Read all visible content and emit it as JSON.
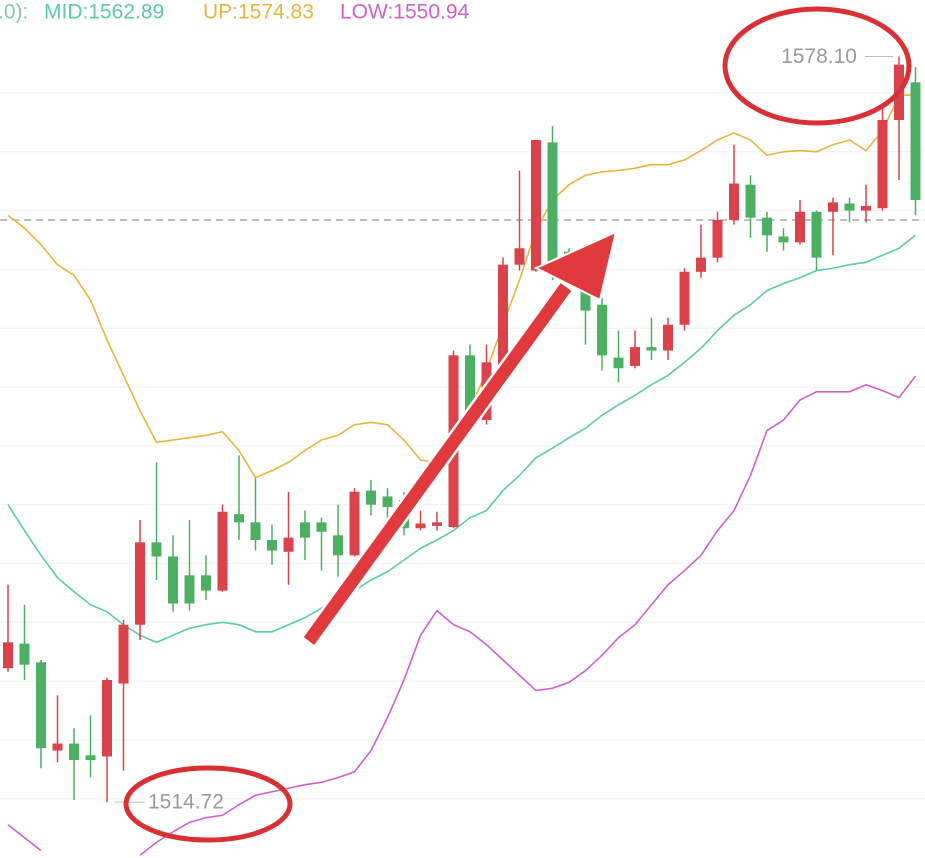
{
  "chart_data": {
    "type": "candlestick",
    "legend_prefix": ".0):",
    "high_label": "1578.10",
    "low_label": "1514.72",
    "up_color": "#d9434b",
    "down_color": "#4caf62",
    "ylim": [
      1509.97,
      1582.9
    ],
    "grid": true,
    "grid_values": [
      1515,
      1520,
      1525,
      1530,
      1535,
      1540,
      1545,
      1550,
      1555,
      1560,
      1565,
      1570,
      1575
    ],
    "price_line": 1564.2,
    "open": [
      1526.1,
      1528.2,
      1526.6,
      1519.1,
      1519.7,
      1518.7,
      1518.6,
      1524.8,
      1529.8,
      1536.8,
      1535.6,
      1534.0,
      1534.0,
      1532.7,
      1539.2,
      1538.5,
      1537.0,
      1536.0,
      1538.5,
      1538.5,
      1537.4,
      1535.7,
      1541.2,
      1540.7,
      1540.4,
      1538.0,
      1538.2,
      1538.1,
      1552.7,
      1547.2,
      1551.4,
      1560.4,
      1559.9,
      1570.8,
      1561.5,
      1558.2,
      1557.0,
      1552.5,
      1551.8,
      1553.4,
      1553.1,
      1555.3,
      1559.8,
      1561.0,
      1564.2,
      1567.2,
      1564.4,
      1562.8,
      1562.3,
      1564.9,
      1564.9,
      1565.6,
      1565.0,
      1565.2,
      1572.7,
      1575.9
    ],
    "close": [
      1528.3,
      1526.4,
      1519.3,
      1519.7,
      1518.3,
      1518.3,
      1525.1,
      1529.8,
      1536.8,
      1535.6,
      1531.6,
      1531.6,
      1532.7,
      1539.4,
      1538.5,
      1537.0,
      1536.1,
      1537.2,
      1537.2,
      1537.7,
      1535.7,
      1541.1,
      1540.0,
      1539.8,
      1538.0,
      1538.4,
      1538.5,
      1552.7,
      1548.0,
      1552.1,
      1560.4,
      1561.8,
      1571.0,
      1560.4,
      1560.1,
      1556.5,
      1552.7,
      1551.6,
      1553.4,
      1553.1,
      1555.3,
      1559.8,
      1561.0,
      1564.2,
      1567.3,
      1564.4,
      1562.9,
      1562.3,
      1564.9,
      1561.0,
      1565.7,
      1565.0,
      1565.4,
      1572.7,
      1577.4,
      1565.9
    ],
    "high": [
      1533.2,
      1531.5,
      1526.8,
      1523.8,
      1521.0,
      1522.1,
      1525.3,
      1530.2,
      1538.7,
      1543.6,
      1537.4,
      1538.7,
      1535.7,
      1540.0,
      1544.2,
      1542.3,
      1538.3,
      1541.1,
      1539.5,
      1538.9,
      1540.0,
      1541.4,
      1542.1,
      1541.4,
      1541.1,
      1539.5,
      1539.4,
      1553.1,
      1553.6,
      1553.6,
      1561.0,
      1568.4,
      1571.0,
      1572.2,
      1561.8,
      1558.7,
      1557.6,
      1554.8,
      1554.8,
      1555.9,
      1555.9,
      1560.1,
      1563.8,
      1564.9,
      1570.6,
      1568.0,
      1564.9,
      1563.5,
      1565.9,
      1565.0,
      1566.1,
      1566.1,
      1567.2,
      1574.0,
      1578.1,
      1577.2
    ],
    "low": [
      1525.8,
      1525.1,
      1517.6,
      1518.1,
      1514.9,
      1516.8,
      1514.72,
      1517.4,
      1528.5,
      1533.6,
      1530.9,
      1531.0,
      1531.9,
      1532.6,
      1537.0,
      1536.1,
      1534.9,
      1533.2,
      1535.3,
      1534.4,
      1533.9,
      1535.6,
      1539.1,
      1537.8,
      1537.4,
      1537.8,
      1537.8,
      1538.0,
      1547.4,
      1546.8,
      1551.3,
      1559.9,
      1559.8,
      1559.1,
      1559.8,
      1553.6,
      1551.4,
      1550.4,
      1551.6,
      1552.3,
      1552.3,
      1554.8,
      1559.3,
      1560.6,
      1563.8,
      1562.7,
      1561.5,
      1561.6,
      1562.1,
      1559.9,
      1561.2,
      1564.0,
      1564.0,
      1565.0,
      1567.6,
      1564.6
    ],
    "series": [
      {
        "name": "MID:1562.89",
        "color": "#5ccaa8",
        "values": [
          1540.0,
          1537.8,
          1535.7,
          1533.8,
          1532.6,
          1531.5,
          1530.9,
          1529.8,
          1528.9,
          1528.3,
          1528.9,
          1529.5,
          1529.8,
          1530.0,
          1529.8,
          1529.2,
          1529.2,
          1529.8,
          1530.4,
          1531.2,
          1532.1,
          1532.7,
          1533.6,
          1534.3,
          1535.3,
          1536.3,
          1537.0,
          1537.8,
          1538.9,
          1539.5,
          1541.2,
          1542.5,
          1544.0,
          1544.8,
          1545.7,
          1546.5,
          1547.6,
          1548.5,
          1549.3,
          1550.2,
          1551.0,
          1552.1,
          1553.3,
          1554.8,
          1556.1,
          1557.0,
          1558.2,
          1558.8,
          1559.3,
          1559.9,
          1560.1,
          1560.4,
          1560.6,
          1561.2,
          1561.8,
          1562.89
        ]
      },
      {
        "name": "UP:1574.83",
        "color": "#e8b53c",
        "values": [
          1564.6,
          1563.5,
          1562.1,
          1560.4,
          1559.5,
          1557.4,
          1554.0,
          1551.0,
          1548.0,
          1545.3,
          1545.5,
          1545.7,
          1545.9,
          1546.2,
          1544.6,
          1542.3,
          1542.9,
          1543.6,
          1544.6,
          1545.5,
          1545.9,
          1546.8,
          1547.0,
          1546.8,
          1545.5,
          1543.8,
          1543.6,
          1545.1,
          1548.0,
          1551.4,
          1555.3,
          1559.1,
          1563.3,
          1565.9,
          1567.2,
          1568.0,
          1568.3,
          1568.4,
          1568.6,
          1568.9,
          1568.9,
          1569.3,
          1570.1,
          1571.0,
          1571.6,
          1571.0,
          1569.7,
          1570.0,
          1570.1,
          1570.0,
          1570.6,
          1571.0,
          1570.1,
          1571.8,
          1574.8,
          1574.83
        ]
      },
      {
        "name": "LOW:1550.94",
        "color": "#d060c8",
        "values": [
          1512.8,
          1511.7,
          1510.6,
          null,
          null,
          null,
          null,
          null,
          1510.2,
          1511.3,
          1512.2,
          1513.0,
          1513.4,
          1513.6,
          1514.5,
          1515.3,
          1515.6,
          1515.9,
          1516.2,
          1516.4,
          1516.8,
          1517.3,
          1519.1,
          1521.9,
          1525.1,
          1528.9,
          1531.0,
          1529.8,
          1529.2,
          1528.1,
          1526.8,
          1525.5,
          1524.2,
          1524.4,
          1524.9,
          1525.9,
          1527.2,
          1528.7,
          1529.8,
          1531.5,
          1533.2,
          1534.4,
          1535.7,
          1537.8,
          1539.5,
          1542.5,
          1546.3,
          1547.2,
          1548.9,
          1549.6,
          1549.6,
          1549.6,
          1550.2,
          1549.7,
          1549.1,
          1550.94
        ]
      }
    ]
  }
}
